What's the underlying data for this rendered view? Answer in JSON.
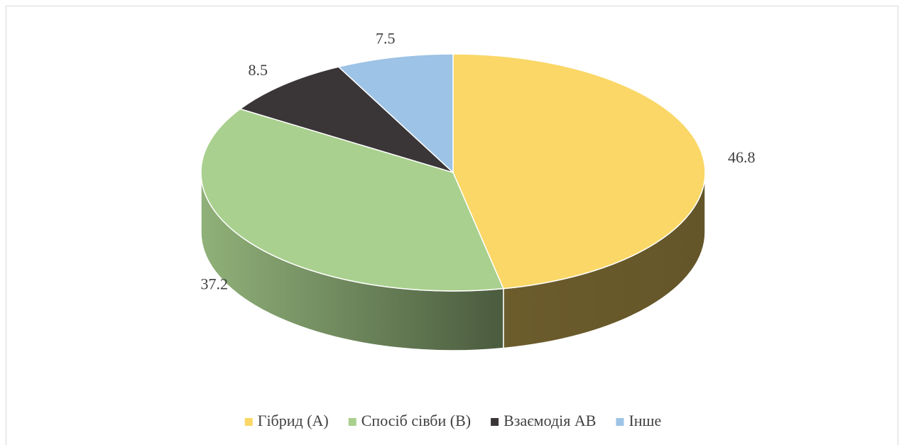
{
  "chart_data": {
    "type": "pie",
    "style": "3d",
    "categories": [
      "Гібрид (А)",
      "Спосіб сівби (В)",
      "Взаємодія АВ",
      "Інше"
    ],
    "values": [
      46.8,
      37.2,
      8.5,
      7.5
    ],
    "colors": [
      "#fad766",
      "#a9d08e",
      "#3a3536",
      "#9dc3e6"
    ],
    "legend": "bottom"
  }
}
